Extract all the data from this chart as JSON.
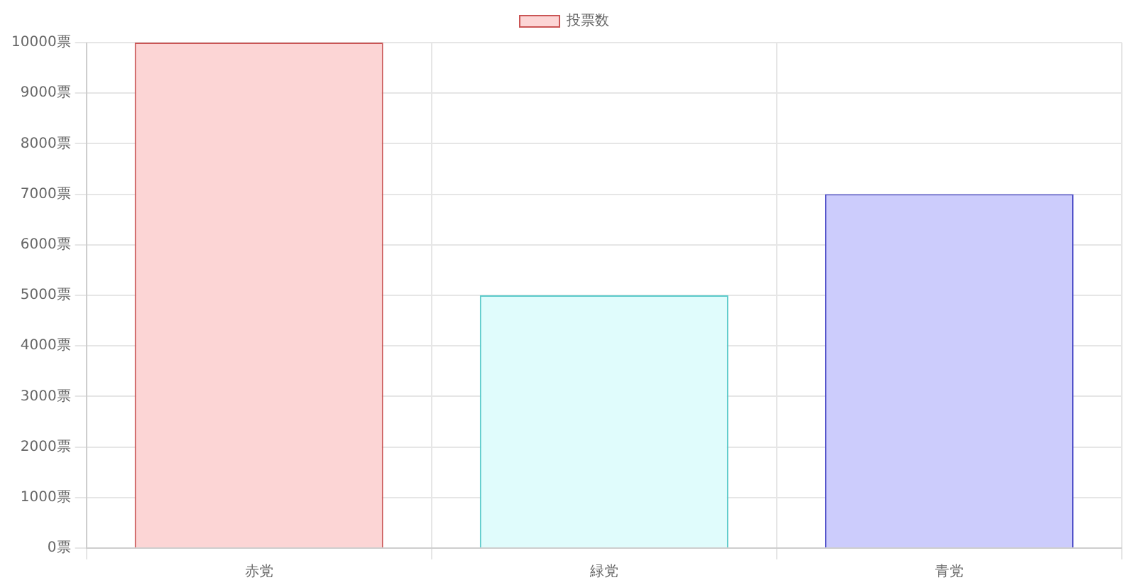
{
  "chart_data": {
    "type": "bar",
    "categories": [
      "赤党",
      "緑党",
      "青党"
    ],
    "series": [
      {
        "name": "投票数",
        "values": [
          10000,
          5000,
          7000
        ],
        "colors": [
          "#fcd5d5",
          "#e0fcfc",
          "#ccccfc"
        ]
      }
    ],
    "ylim": [
      0,
      10000
    ],
    "yticks": [
      {
        "value": 0,
        "label": "0票"
      },
      {
        "value": 1000,
        "label": "1000票"
      },
      {
        "value": 2000,
        "label": "2000票"
      },
      {
        "value": 3000,
        "label": "3000票"
      },
      {
        "value": 4000,
        "label": "4000票"
      },
      {
        "value": 5000,
        "label": "5000票"
      },
      {
        "value": 6000,
        "label": "6000票"
      },
      {
        "value": 7000,
        "label": "7000票"
      },
      {
        "value": 8000,
        "label": "8000票"
      },
      {
        "value": 9000,
        "label": "9000票"
      },
      {
        "value": 10000,
        "label": "10000票"
      }
    ],
    "grid": true,
    "legend": "top"
  }
}
